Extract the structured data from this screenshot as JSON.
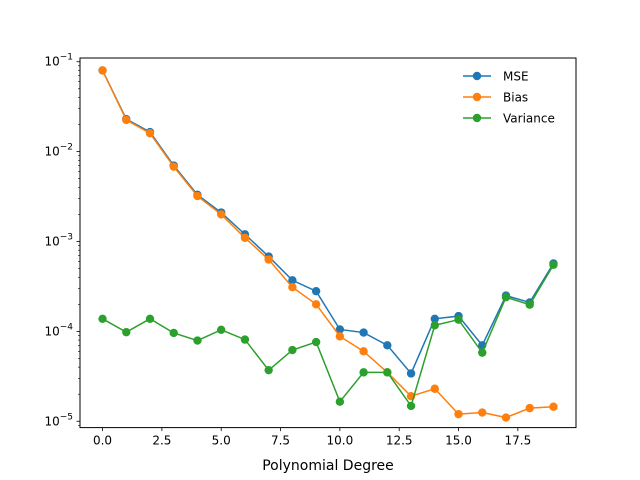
{
  "chart_data": {
    "type": "line",
    "title": "",
    "xlabel": "Polynomial Degree",
    "ylabel": "",
    "yscale": "log",
    "xlim": [
      -0.95,
      19.95
    ],
    "ylim": [
      8.5e-06,
      0.11
    ],
    "x_ticks": [
      0.0,
      2.5,
      5.0,
      7.5,
      10.0,
      12.5,
      15.0,
      17.5
    ],
    "x_tick_labels": [
      "0.0",
      "2.5",
      "5.0",
      "7.5",
      "10.0",
      "12.5",
      "15.0",
      "17.5"
    ],
    "y_ticks": [
      1e-05,
      0.0001,
      0.001,
      0.01,
      0.1
    ],
    "y_tick_labels": [
      {
        "base": "10",
        "exp": "−5"
      },
      {
        "base": "10",
        "exp": "−4"
      },
      {
        "base": "10",
        "exp": "−3"
      },
      {
        "base": "10",
        "exp": "−2"
      },
      {
        "base": "10",
        "exp": "−1"
      }
    ],
    "grid": false,
    "legend_position": "top-right",
    "x": [
      0,
      1,
      2,
      3,
      4,
      5,
      6,
      7,
      8,
      9,
      10,
      11,
      12,
      13,
      14,
      15,
      16,
      17,
      18,
      19
    ],
    "series": [
      {
        "name": "MSE",
        "color": "#1f77b4",
        "values": [
          0.08,
          0.023,
          0.0165,
          0.007,
          0.0033,
          0.0021,
          0.0012,
          0.00068,
          0.00037,
          0.00028,
          0.000105,
          9.7e-05,
          7e-05,
          3.4e-05,
          0.000138,
          0.000148,
          7e-05,
          0.00025,
          0.00021,
          0.00057
        ]
      },
      {
        "name": "Bias",
        "color": "#ff7f0e",
        "values": [
          0.08,
          0.0225,
          0.016,
          0.0068,
          0.0032,
          0.002,
          0.0011,
          0.00063,
          0.00031,
          0.0002,
          8.8e-05,
          6e-05,
          3.5e-05,
          1.9e-05,
          2.3e-05,
          1.2e-05,
          1.25e-05,
          1.1e-05,
          1.4e-05,
          1.45e-05
        ]
      },
      {
        "name": "Variance",
        "color": "#2ca02c",
        "values": [
          0.000138,
          9.8e-05,
          0.000138,
          9.6e-05,
          7.9e-05,
          0.000104,
          8.1e-05,
          3.7e-05,
          6.2e-05,
          7.6e-05,
          1.65e-05,
          3.5e-05,
          3.5e-05,
          1.48e-05,
          0.000117,
          0.000135,
          5.8e-05,
          0.00024,
          0.000198,
          0.00055
        ]
      }
    ]
  }
}
